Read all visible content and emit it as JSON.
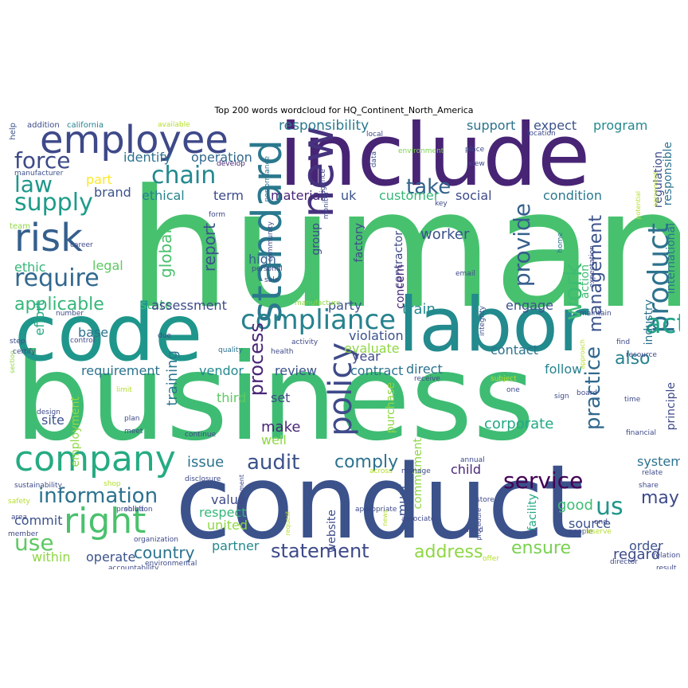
{
  "chart_data": {
    "type": "wordcloud",
    "title": "Top 200 words wordcloud for HQ_Continent_North_America",
    "words": [
      {
        "text": "human",
        "weight": 100,
        "color": "#47c16e"
      },
      {
        "text": "business",
        "weight": 88,
        "color": "#3fbc73"
      },
      {
        "text": "conduct",
        "weight": 82,
        "color": "#3b528b"
      },
      {
        "text": "include",
        "weight": 74,
        "color": "#482475"
      },
      {
        "text": "code",
        "weight": 66,
        "color": "#1f968b"
      },
      {
        "text": "labor",
        "weight": 62,
        "color": "#238a8d"
      },
      {
        "text": "employee",
        "weight": 42,
        "color": "#3e4989"
      },
      {
        "text": "company",
        "weight": 40,
        "color": "#25ab82"
      },
      {
        "text": "right",
        "weight": 40,
        "color": "#4ac16d"
      },
      {
        "text": "risk",
        "weight": 36,
        "color": "#355f8d"
      },
      {
        "text": "new",
        "weight": 34,
        "color": "#46327e"
      },
      {
        "text": "standard",
        "weight": 32,
        "color": "#2a788e"
      },
      {
        "text": "policy",
        "weight": 30,
        "color": "#3e4a89"
      },
      {
        "text": "compliance",
        "weight": 28,
        "color": "#26828e"
      },
      {
        "text": "product",
        "weight": 26,
        "color": "#2c728e"
      },
      {
        "text": "act",
        "weight": 24,
        "color": "#20a386"
      },
      {
        "text": "supply",
        "weight": 24,
        "color": "#1e9c89"
      },
      {
        "text": "require",
        "weight": 24,
        "color": "#31688e"
      },
      {
        "text": "chain",
        "weight": 24,
        "color": "#23898e"
      },
      {
        "text": "force",
        "weight": 24,
        "color": "#3e4a89"
      },
      {
        "text": "law",
        "weight": 24,
        "color": "#1f968b"
      },
      {
        "text": "take",
        "weight": 20,
        "color": "#33638d"
      },
      {
        "text": "audit",
        "weight": 20,
        "color": "#3b528b"
      },
      {
        "text": "service",
        "weight": 22,
        "color": "#440154"
      },
      {
        "text": "information",
        "weight": 22,
        "color": "#2c728e"
      },
      {
        "text": "statement",
        "weight": 20,
        "color": "#3e4a89"
      },
      {
        "text": "provide",
        "weight": 20,
        "color": "#355f8d"
      },
      {
        "text": "practice",
        "weight": 20,
        "color": "#31688e"
      },
      {
        "text": "work",
        "weight": 20,
        "color": "#3fbc73"
      },
      {
        "text": "process",
        "weight": 18,
        "color": "#482677"
      },
      {
        "text": "management",
        "weight": 16,
        "color": "#3b528b"
      },
      {
        "text": "applicable",
        "weight": 18,
        "color": "#35b779"
      },
      {
        "text": "ensure",
        "weight": 18,
        "color": "#7ad151"
      },
      {
        "text": "address",
        "weight": 18,
        "color": "#8fd744"
      },
      {
        "text": "comply",
        "weight": 18,
        "color": "#2c728e"
      },
      {
        "text": "use",
        "weight": 22,
        "color": "#5ec962"
      },
      {
        "text": "us",
        "weight": 22,
        "color": "#1f968b"
      },
      {
        "text": "may",
        "weight": 18,
        "color": "#3e4a89"
      },
      {
        "text": "global",
        "weight": 16,
        "color": "#4ac16d"
      },
      {
        "text": "report",
        "weight": 16,
        "color": "#3b528b"
      },
      {
        "text": "training",
        "weight": 16,
        "color": "#2a788e"
      },
      {
        "text": "also",
        "weight": 16,
        "color": "#26828e"
      },
      {
        "text": "country",
        "weight": 16,
        "color": "#2c728e"
      },
      {
        "text": "corporate",
        "weight": 14,
        "color": "#22a884"
      },
      {
        "text": "responsibility",
        "weight": 14,
        "color": "#2a788e"
      },
      {
        "text": "support",
        "weight": 13,
        "color": "#2c728e"
      },
      {
        "text": "expect",
        "weight": 13,
        "color": "#3b528b"
      },
      {
        "text": "program",
        "weight": 13,
        "color": "#23898e"
      },
      {
        "text": "identify",
        "weight": 13,
        "color": "#2c728e"
      },
      {
        "text": "operation",
        "weight": 13,
        "color": "#31688e"
      },
      {
        "text": "part",
        "weight": 13,
        "color": "#fde725"
      },
      {
        "text": "brand",
        "weight": 12,
        "color": "#3b528b"
      },
      {
        "text": "ethical",
        "weight": 12,
        "color": "#26828e"
      },
      {
        "text": "term",
        "weight": 12,
        "color": "#3e4a89"
      },
      {
        "text": "material",
        "weight": 12,
        "color": "#482677"
      },
      {
        "text": "uk",
        "weight": 12,
        "color": "#3b528b"
      },
      {
        "text": "customer",
        "weight": 12,
        "color": "#35b779"
      },
      {
        "text": "social",
        "weight": 13,
        "color": "#3e4a89"
      },
      {
        "text": "condition",
        "weight": 12,
        "color": "#2a788e"
      },
      {
        "text": "worker",
        "weight": 14,
        "color": "#3b528b"
      },
      {
        "text": "ethic",
        "weight": 13,
        "color": "#35b779"
      },
      {
        "text": "legal",
        "weight": 12,
        "color": "#5ec962"
      },
      {
        "text": "high",
        "weight": 12,
        "color": "#33638d"
      },
      {
        "text": "state",
        "weight": 12,
        "color": "#3fbc73"
      },
      {
        "text": "assessment",
        "weight": 12,
        "color": "#3e4a89"
      },
      {
        "text": "party",
        "weight": 12,
        "color": "#3b528b"
      },
      {
        "text": "train",
        "weight": 14,
        "color": "#23898e"
      },
      {
        "text": "engage",
        "weight": 12,
        "color": "#3b528b"
      },
      {
        "text": "effort",
        "weight": 12,
        "color": "#22a884"
      },
      {
        "text": "base",
        "weight": 12,
        "color": "#2c728e"
      },
      {
        "text": "violation",
        "weight": 13,
        "color": "#3b528b"
      },
      {
        "text": "evaluate",
        "weight": 12,
        "color": "#8fd744"
      },
      {
        "text": "year",
        "weight": 12,
        "color": "#3e4a89"
      },
      {
        "text": "requirement",
        "weight": 12,
        "color": "#2c728e"
      },
      {
        "text": "vendor",
        "weight": 12,
        "color": "#23898e"
      },
      {
        "text": "review",
        "weight": 12,
        "color": "#3b528b"
      },
      {
        "text": "contract",
        "weight": 12,
        "color": "#2c728e"
      },
      {
        "text": "direct",
        "weight": 13,
        "color": "#2c728e"
      },
      {
        "text": "contact",
        "weight": 12,
        "color": "#2c728e"
      },
      {
        "text": "follow",
        "weight": 12,
        "color": "#26828e"
      },
      {
        "text": "third",
        "weight": 12,
        "color": "#5ec962"
      },
      {
        "text": "set",
        "weight": 12,
        "color": "#3e4a89"
      },
      {
        "text": "make",
        "weight": 14,
        "color": "#482677"
      },
      {
        "text": "well",
        "weight": 12,
        "color": "#8fd744"
      },
      {
        "text": "site",
        "weight": 13,
        "color": "#3b528b"
      },
      {
        "text": "issue",
        "weight": 14,
        "color": "#2c728e"
      },
      {
        "text": "child",
        "weight": 13,
        "color": "#482677"
      },
      {
        "text": "system",
        "weight": 12,
        "color": "#2c728e"
      },
      {
        "text": "value",
        "weight": 12,
        "color": "#3e4a89"
      },
      {
        "text": "respect",
        "weight": 12,
        "color": "#35b779"
      },
      {
        "text": "united",
        "weight": 12,
        "color": "#8fd744"
      },
      {
        "text": "commit",
        "weight": 12,
        "color": "#3b528b"
      },
      {
        "text": "within",
        "weight": 12,
        "color": "#8fd744"
      },
      {
        "text": "operate",
        "weight": 12,
        "color": "#3b528b"
      },
      {
        "text": "partner",
        "weight": 12,
        "color": "#23898e"
      },
      {
        "text": "good",
        "weight": 13,
        "color": "#3fbc73"
      },
      {
        "text": "source",
        "weight": 12,
        "color": "#3b528b"
      },
      {
        "text": "order",
        "weight": 12,
        "color": "#3b528b"
      },
      {
        "text": "regard",
        "weight": 13,
        "color": "#3e4a89"
      },
      {
        "text": "must",
        "weight": 12,
        "color": "#3b528b"
      },
      {
        "text": "website",
        "weight": 11,
        "color": "#3e4a89"
      },
      {
        "text": "facility",
        "weight": 11,
        "color": "#22a884"
      },
      {
        "text": "purchase",
        "weight": 11,
        "color": "#8fd744"
      },
      {
        "text": "commitment",
        "weight": 11,
        "color": "#8fd744"
      },
      {
        "text": "employment",
        "weight": 10,
        "color": "#8fd744"
      },
      {
        "text": "factory",
        "weight": 11,
        "color": "#3e4a89"
      },
      {
        "text": "contractor",
        "weight": 11,
        "color": "#3e4a89"
      },
      {
        "text": "concern",
        "weight": 11,
        "color": "#482677"
      },
      {
        "text": "group",
        "weight": 11,
        "color": "#3e4a89"
      },
      {
        "text": "regulation",
        "weight": 11,
        "color": "#3e4a89"
      },
      {
        "text": "responsible",
        "weight": 11,
        "color": "#2c728e"
      },
      {
        "text": "international",
        "weight": 11,
        "color": "#2c728e"
      },
      {
        "text": "industry",
        "weight": 11,
        "color": "#2c728e"
      },
      {
        "text": "principle",
        "weight": 11,
        "color": "#3e4a89"
      },
      {
        "text": "action",
        "weight": 11,
        "color": "#3fbc73"
      },
      {
        "text": "help",
        "weight": 8,
        "color": "#3b528b"
      },
      {
        "text": "addition",
        "weight": 8,
        "color": "#3e4a89"
      },
      {
        "text": "california",
        "weight": 8,
        "color": "#26828e"
      },
      {
        "text": "available",
        "weight": 8,
        "color": "#b5de2b"
      },
      {
        "text": "local",
        "weight": 8,
        "color": "#3e4a89"
      },
      {
        "text": "location",
        "weight": 8,
        "color": "#3e4a89"
      },
      {
        "text": "environment",
        "weight": 8,
        "color": "#7ad151"
      },
      {
        "text": "place",
        "weight": 8,
        "color": "#3e4a89"
      },
      {
        "text": "view",
        "weight": 8,
        "color": "#3e4a89"
      },
      {
        "text": "develop",
        "weight": 8,
        "color": "#482677"
      },
      {
        "text": "manufacturer",
        "weight": 8,
        "color": "#3b528b"
      },
      {
        "text": "performance",
        "weight": 8,
        "color": "#2c728e"
      },
      {
        "text": "diligence",
        "weight": 8,
        "color": "#3e4a89"
      },
      {
        "text": "data",
        "weight": 8,
        "color": "#3b528b"
      },
      {
        "text": "monitor",
        "weight": 8,
        "color": "#3e4a89"
      },
      {
        "text": "key",
        "weight": 8,
        "color": "#3e4a89"
      },
      {
        "text": "form",
        "weight": 8,
        "color": "#3e4a89"
      },
      {
        "text": "community",
        "weight": 8,
        "color": "#3e4a89"
      },
      {
        "text": "team",
        "weight": 8,
        "color": "#8fd744"
      },
      {
        "text": "career",
        "weight": 8,
        "color": "#3e4a89"
      },
      {
        "text": "personal",
        "weight": 8,
        "color": "#3e4a89"
      },
      {
        "text": "sale",
        "weight": 8,
        "color": "#3e4a89"
      },
      {
        "text": "email",
        "weight": 8,
        "color": "#3e4a89"
      },
      {
        "text": "home",
        "weight": 7,
        "color": "#2c728e"
      },
      {
        "text": "expectation",
        "weight": 8,
        "color": "#3e4a89"
      },
      {
        "text": "potential",
        "weight": 7,
        "color": "#b5de2b"
      },
      {
        "text": "agreement",
        "weight": 7,
        "color": "#b5de2b"
      },
      {
        "text": "manufacture",
        "weight": 8,
        "color": "#8fd744"
      },
      {
        "text": "number",
        "weight": 8,
        "color": "#3e4a89"
      },
      {
        "text": "integrity",
        "weight": 8,
        "color": "#3e4a89"
      },
      {
        "text": "maintain",
        "weight": 8,
        "color": "#3e4a89"
      },
      {
        "text": "step",
        "weight": 8,
        "color": "#3e4a89"
      },
      {
        "text": "control",
        "weight": 8,
        "color": "#3e4a89"
      },
      {
        "text": "due",
        "weight": 8,
        "color": "#3e4a89"
      },
      {
        "text": "quality",
        "weight": 8,
        "color": "#2c728e"
      },
      {
        "text": "health",
        "weight": 8,
        "color": "#3e4a89"
      },
      {
        "text": "activity",
        "weight": 8,
        "color": "#3e4a89"
      },
      {
        "text": "approach",
        "weight": 7,
        "color": "#b5de2b"
      },
      {
        "text": "find",
        "weight": 8,
        "color": "#3e4a89"
      },
      {
        "text": "section",
        "weight": 7,
        "color": "#8fd744"
      },
      {
        "text": "certify",
        "weight": 8,
        "color": "#3e4a89"
      },
      {
        "text": "resource",
        "weight": 8,
        "color": "#3e4a89"
      },
      {
        "text": "receive",
        "weight": 8,
        "color": "#3e4a89"
      },
      {
        "text": "subject",
        "weight": 8,
        "color": "#b5de2b"
      },
      {
        "text": "one",
        "weight": 8,
        "color": "#3e4a89"
      },
      {
        "text": "limit",
        "weight": 8,
        "color": "#b5de2b"
      },
      {
        "text": "sign",
        "weight": 8,
        "color": "#3e4a89"
      },
      {
        "text": "board",
        "weight": 8,
        "color": "#3e4a89"
      },
      {
        "text": "time",
        "weight": 8,
        "color": "#3e4a89"
      },
      {
        "text": "design",
        "weight": 8,
        "color": "#3e4a89"
      },
      {
        "text": "plan",
        "weight": 8,
        "color": "#3e4a89"
      },
      {
        "text": "meet",
        "weight": 8,
        "color": "#3e4a89"
      },
      {
        "text": "continue",
        "weight": 8,
        "color": "#3e4a89"
      },
      {
        "text": "financial",
        "weight": 8,
        "color": "#3e4a89"
      },
      {
        "text": "annual",
        "weight": 8,
        "color": "#3e4a89"
      },
      {
        "text": "disclosure",
        "weight": 8,
        "color": "#3e4a89"
      },
      {
        "text": "implement",
        "weight": 7,
        "color": "#3e4a89"
      },
      {
        "text": "across",
        "weight": 8,
        "color": "#b5de2b"
      },
      {
        "text": "manage",
        "weight": 8,
        "color": "#3e4a89"
      },
      {
        "text": "relate",
        "weight": 8,
        "color": "#3e4a89"
      },
      {
        "text": "sustainability",
        "weight": 8,
        "color": "#3e4a89"
      },
      {
        "text": "shop",
        "weight": 8,
        "color": "#b5de2b"
      },
      {
        "text": "share",
        "weight": 8,
        "color": "#3e4a89"
      },
      {
        "text": "safety",
        "weight": 8,
        "color": "#b5de2b"
      },
      {
        "text": "prohibit",
        "weight": 8,
        "color": "#3e4a89"
      },
      {
        "text": "store",
        "weight": 8,
        "color": "#3e4a89"
      },
      {
        "text": "end",
        "weight": 8,
        "color": "#3e4a89"
      },
      {
        "text": "request",
        "weight": 8,
        "color": "#b5de2b"
      },
      {
        "text": "procedure",
        "weight": 8,
        "color": "#3e4a89"
      },
      {
        "text": "solution",
        "weight": 7,
        "color": "#3e4a89"
      },
      {
        "text": "appropriate",
        "weight": 7,
        "color": "#3e4a89"
      },
      {
        "text": "associate",
        "weight": 8,
        "color": "#3e4a89"
      },
      {
        "text": "member",
        "weight": 8,
        "color": "#3e4a89"
      },
      {
        "text": "area",
        "weight": 8,
        "color": "#3e4a89"
      },
      {
        "text": "people",
        "weight": 8,
        "color": "#3e4a89"
      },
      {
        "text": "world",
        "weight": 8,
        "color": "#3e4a89"
      },
      {
        "text": "reserve",
        "weight": 8,
        "color": "#b5de2b"
      },
      {
        "text": "organization",
        "weight": 8,
        "color": "#3e4a89"
      },
      {
        "text": "accountability",
        "weight": 7,
        "color": "#3e4a89"
      },
      {
        "text": "news",
        "weight": 8,
        "color": "#b5de2b"
      },
      {
        "text": "environmental",
        "weight": 8,
        "color": "#3e4a89"
      },
      {
        "text": "offer",
        "weight": 8,
        "color": "#b5de2b"
      },
      {
        "text": "director",
        "weight": 8,
        "color": "#3e4a89"
      },
      {
        "text": "relationship",
        "weight": 8,
        "color": "#3e4a89"
      },
      {
        "text": "result",
        "weight": 8,
        "color": "#3e4a89"
      }
    ]
  }
}
